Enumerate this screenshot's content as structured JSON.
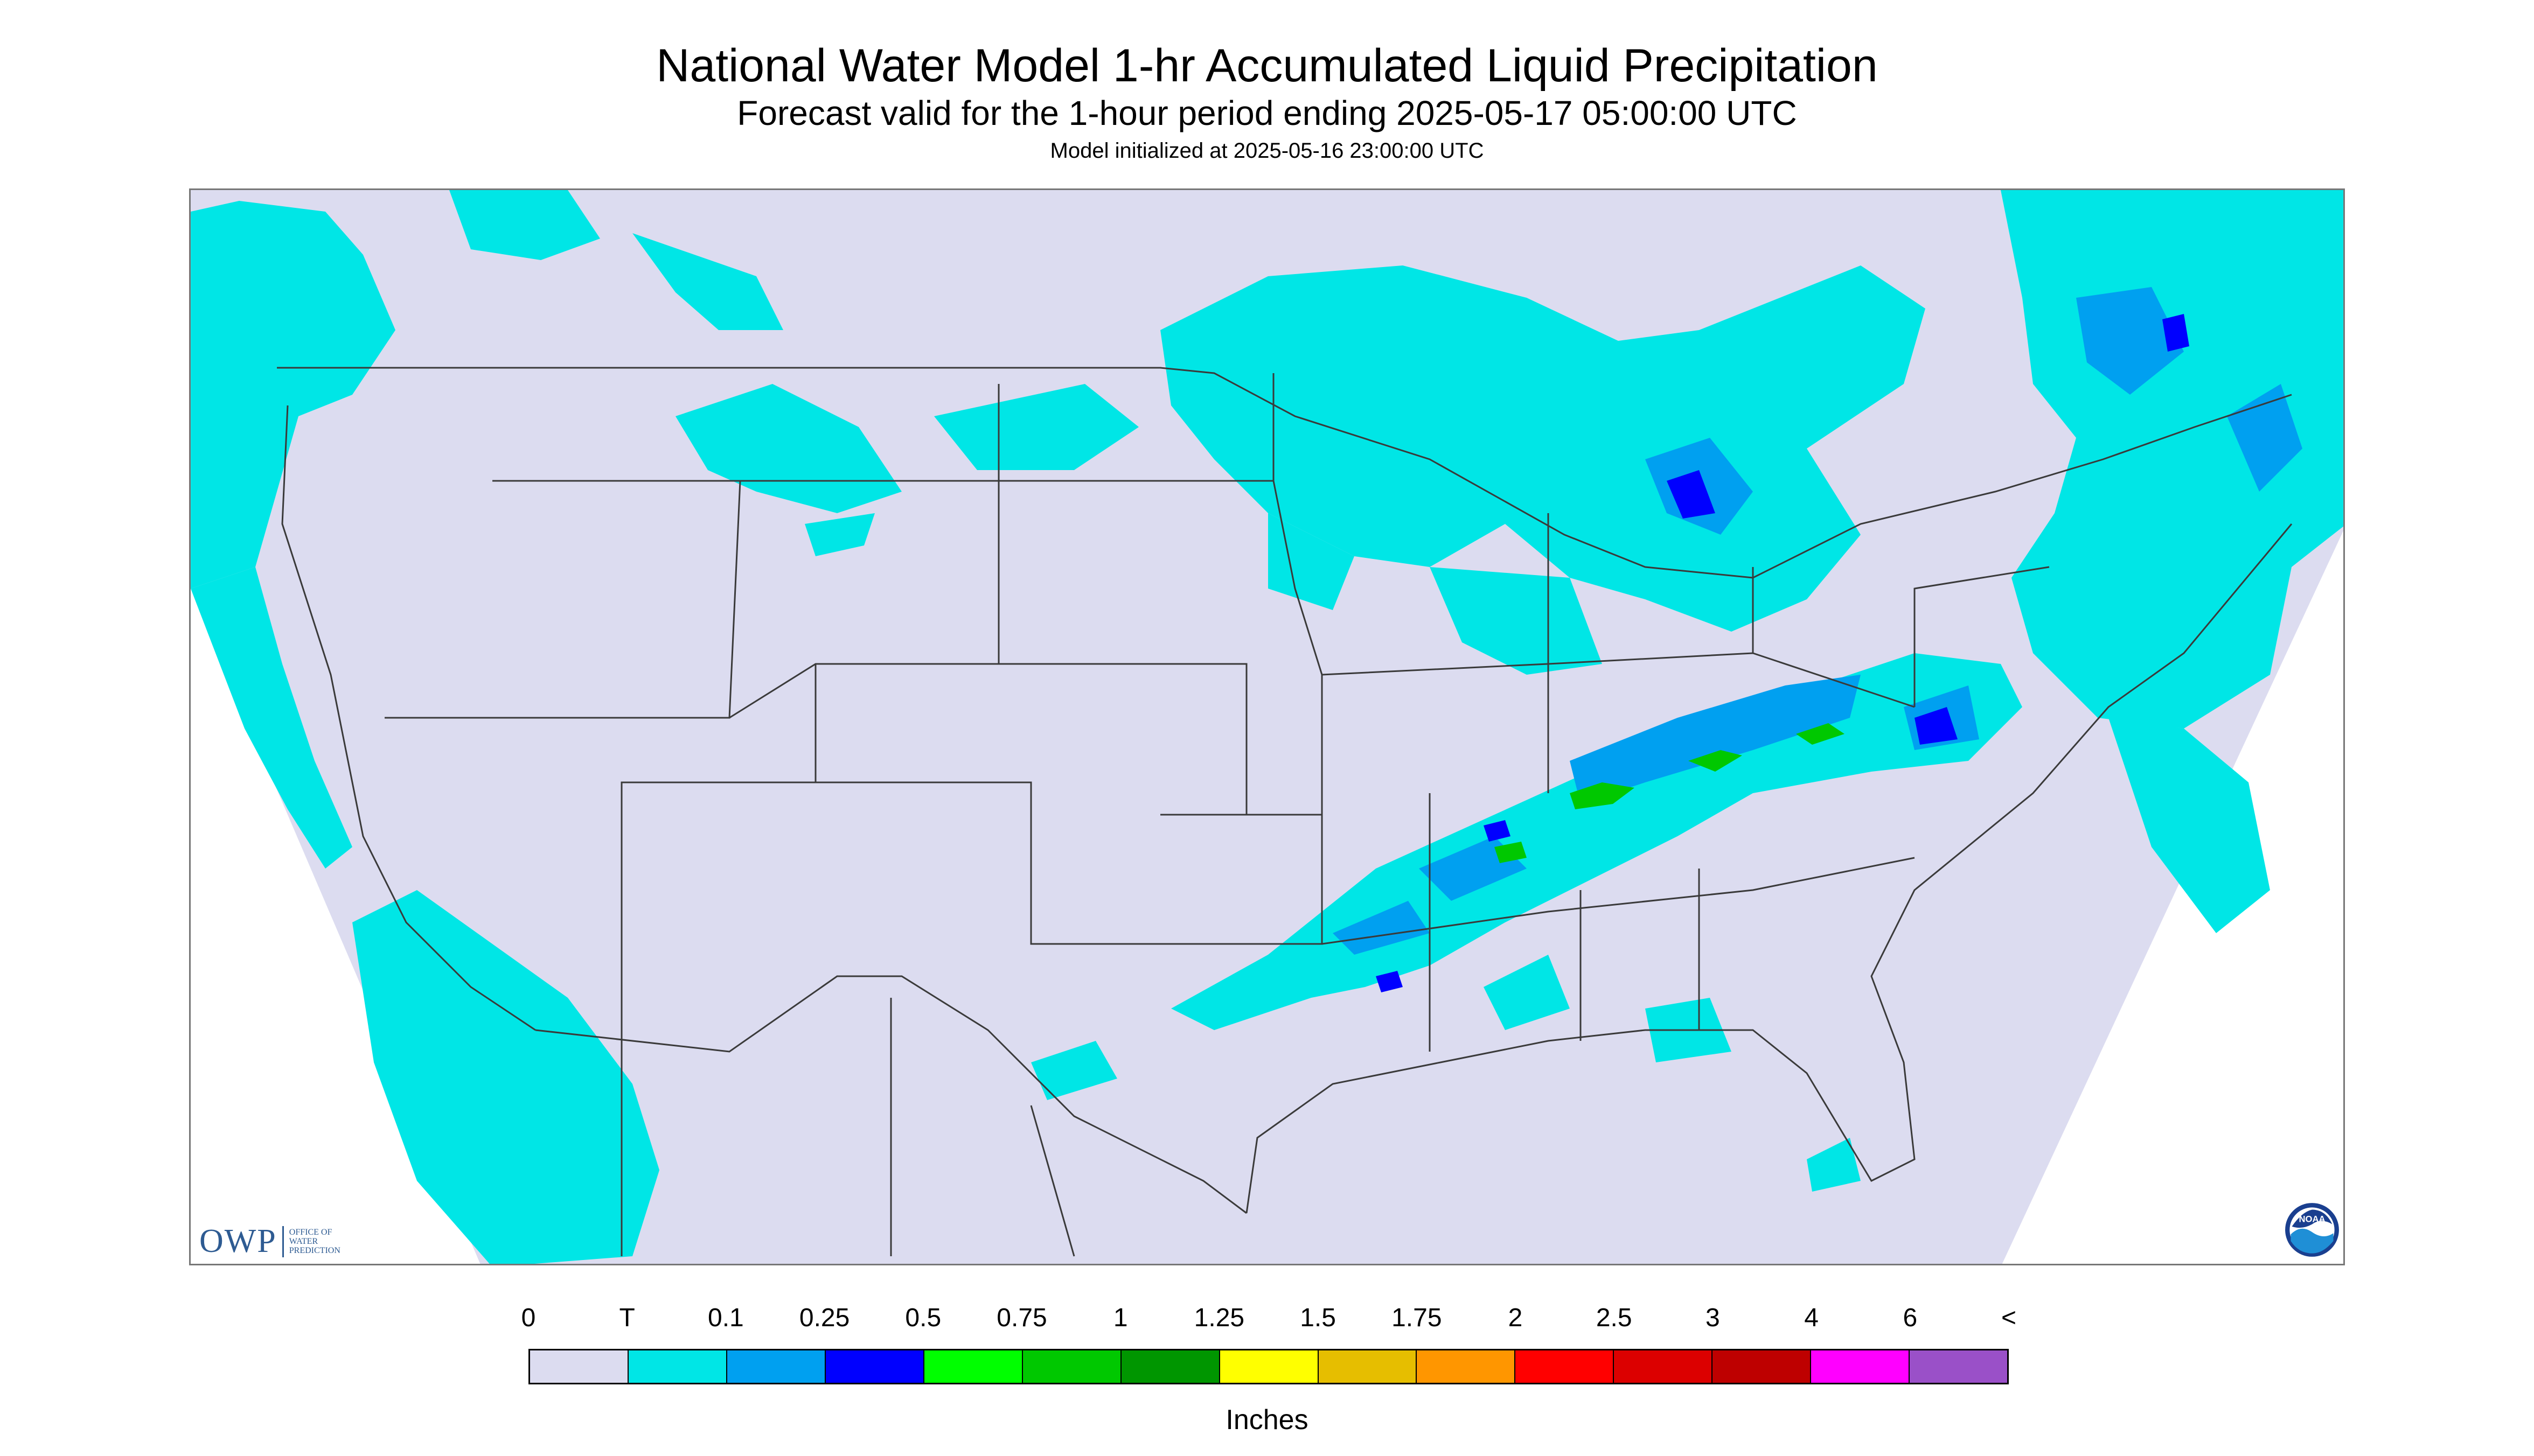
{
  "header": {
    "title": "National Water Model 1-hr Accumulated Liquid Precipitation",
    "subtitle": "Forecast valid for the 1-hour period ending 2025-05-17 05:00:00 UTC",
    "model_init": "Model initialized at 2025-05-16 23:00:00 UTC"
  },
  "logos": {
    "owp_letters": "OWP",
    "owp_line1": "OFFICE OF",
    "owp_line2": "WATER",
    "owp_line3": "PREDICTION",
    "noaa_text": "NOAA"
  },
  "legend": {
    "units": "Inches",
    "labels": [
      "0",
      "T",
      "0.1",
      "0.25",
      "0.5",
      "0.75",
      "1",
      "1.25",
      "1.5",
      "1.75",
      "2",
      "2.5",
      "3",
      "4",
      "6",
      "<"
    ],
    "colors": [
      "#dcdcf0",
      "#00e6e6",
      "#00a0f0",
      "#0000ff",
      "#00ff00",
      "#00c800",
      "#009600",
      "#ffff00",
      "#e6be00",
      "#ff9600",
      "#ff0000",
      "#dc0000",
      "#be0000",
      "#ff00ff",
      "#9a50c8"
    ]
  },
  "map": {
    "background_color": "#dcdcf0",
    "outside_color": "#ffffff",
    "border_color": "#3a3a3a"
  }
}
